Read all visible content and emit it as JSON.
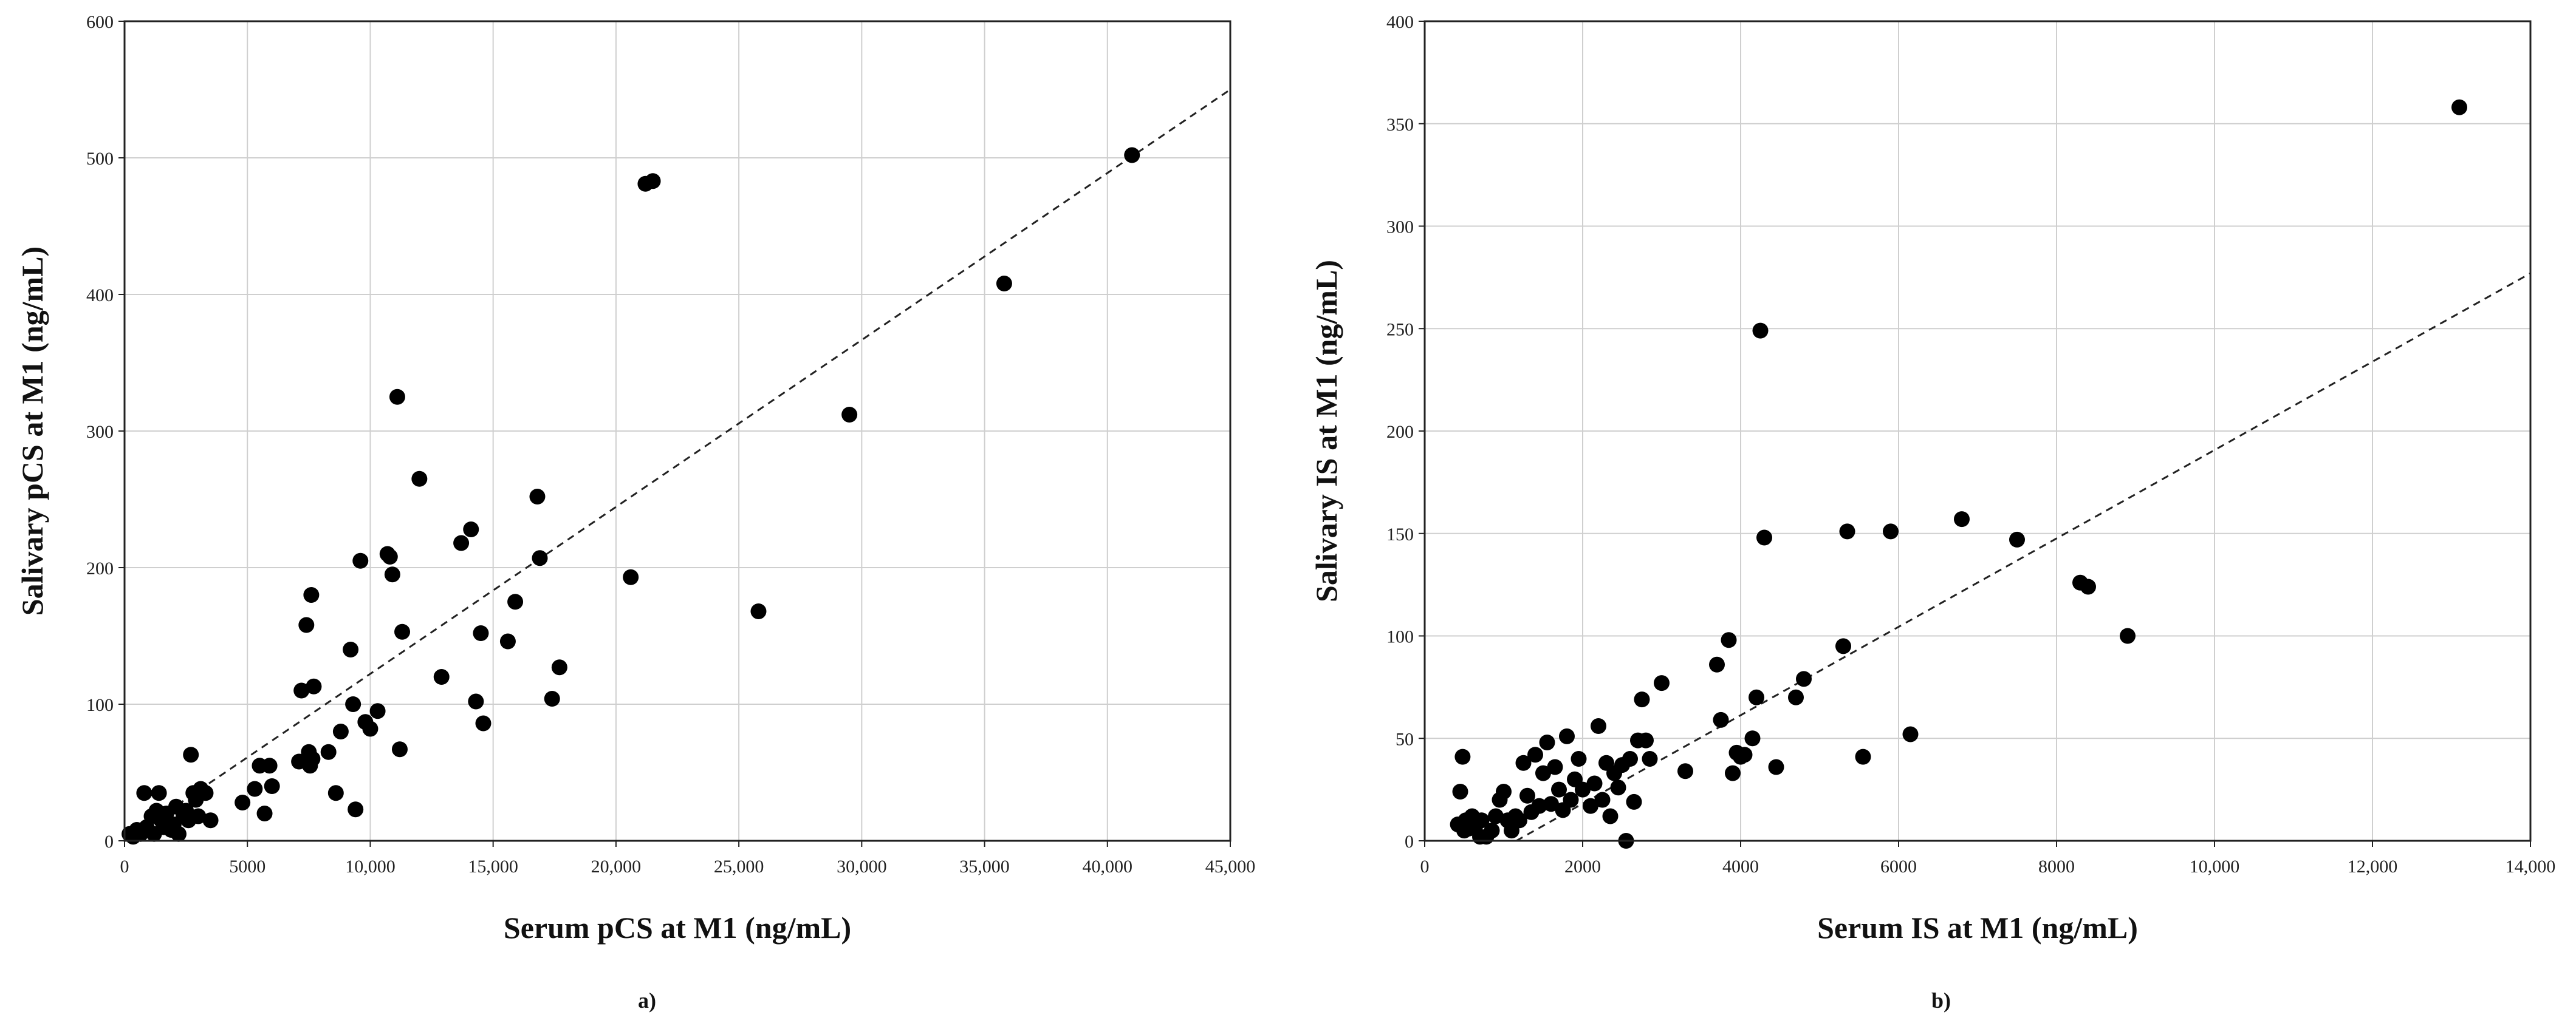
{
  "chart_data": [
    {
      "type": "scatter",
      "xlabel": "Serum pCS at M1 (ng/mL)",
      "ylabel": "Salivary pCS at M1 (ng/mL)",
      "panel_label": "a)",
      "xlim": [
        0,
        45000
      ],
      "ylim": [
        0,
        600
      ],
      "xticks": [
        0,
        5000,
        10000,
        15000,
        20000,
        25000,
        30000,
        35000,
        40000,
        45000
      ],
      "xtick_labels": [
        "0",
        "5000",
        "10,000",
        "15,000",
        "20,000",
        "25,000",
        "30,000",
        "35,000",
        "40,000",
        "45,000"
      ],
      "yticks": [
        0,
        100,
        200,
        300,
        400,
        500,
        600
      ],
      "ytick_labels": [
        "0",
        "100",
        "200",
        "300",
        "400",
        "500",
        "600"
      ],
      "grid": true,
      "trendline": {
        "style": "dashed",
        "x": [
          0,
          45000
        ],
        "y": [
          0,
          550
        ]
      },
      "points": [
        [
          200,
          5
        ],
        [
          350,
          3
        ],
        [
          500,
          8
        ],
        [
          650,
          5
        ],
        [
          800,
          35
        ],
        [
          900,
          10
        ],
        [
          1100,
          18
        ],
        [
          1200,
          5
        ],
        [
          1300,
          22
        ],
        [
          1400,
          35
        ],
        [
          1500,
          15
        ],
        [
          1600,
          10
        ],
        [
          1700,
          20
        ],
        [
          1900,
          8
        ],
        [
          2000,
          12
        ],
        [
          2100,
          25
        ],
        [
          2200,
          5
        ],
        [
          2400,
          18
        ],
        [
          2500,
          22
        ],
        [
          2600,
          15
        ],
        [
          2700,
          63
        ],
        [
          2800,
          35
        ],
        [
          2900,
          30
        ],
        [
          3000,
          18
        ],
        [
          3100,
          38
        ],
        [
          3300,
          35
        ],
        [
          3500,
          15
        ],
        [
          4800,
          28
        ],
        [
          5300,
          38
        ],
        [
          5500,
          55
        ],
        [
          5700,
          20
        ],
        [
          5900,
          55
        ],
        [
          6000,
          40
        ],
        [
          7100,
          58
        ],
        [
          7200,
          110
        ],
        [
          7400,
          158
        ],
        [
          7500,
          65
        ],
        [
          7550,
          55
        ],
        [
          7600,
          180
        ],
        [
          7650,
          60
        ],
        [
          7700,
          113
        ],
        [
          8300,
          65
        ],
        [
          8600,
          35
        ],
        [
          8800,
          80
        ],
        [
          9200,
          140
        ],
        [
          9300,
          100
        ],
        [
          9400,
          23
        ],
        [
          9600,
          205
        ],
        [
          9800,
          87
        ],
        [
          10000,
          82
        ],
        [
          10300,
          95
        ],
        [
          10700,
          210
        ],
        [
          10800,
          208
        ],
        [
          10900,
          195
        ],
        [
          11100,
          325
        ],
        [
          11200,
          67
        ],
        [
          11300,
          153
        ],
        [
          12000,
          265
        ],
        [
          12900,
          120
        ],
        [
          13700,
          218
        ],
        [
          14100,
          228
        ],
        [
          14300,
          102
        ],
        [
          14500,
          152
        ],
        [
          14600,
          86
        ],
        [
          15600,
          146
        ],
        [
          15900,
          175
        ],
        [
          16800,
          252
        ],
        [
          16900,
          207
        ],
        [
          17400,
          104
        ],
        [
          17700,
          127
        ],
        [
          20600,
          193
        ],
        [
          21200,
          481
        ],
        [
          21500,
          483
        ],
        [
          25800,
          168
        ],
        [
          29500,
          312
        ],
        [
          35800,
          408
        ],
        [
          41000,
          502
        ]
      ]
    },
    {
      "type": "scatter",
      "xlabel": "Serum IS at M1 (ng/mL)",
      "ylabel": "Salivary IS at M1 (ng/mL)",
      "panel_label": "b)",
      "xlim": [
        0,
        14000
      ],
      "ylim": [
        0,
        400
      ],
      "xticks": [
        0,
        2000,
        4000,
        6000,
        8000,
        10000,
        12000,
        14000
      ],
      "xtick_labels": [
        "0",
        "2000",
        "4000",
        "6000",
        "8000",
        "10,000",
        "12,000",
        "14,000"
      ],
      "yticks": [
        0,
        50,
        100,
        150,
        200,
        250,
        300,
        350,
        400
      ],
      "ytick_labels": [
        "0",
        "50",
        "100",
        "150",
        "200",
        "250",
        "300",
        "350",
        "400"
      ],
      "grid": true,
      "trendline": {
        "style": "dashed",
        "x": [
          0,
          14000
        ],
        "y": [
          -25,
          277
        ]
      },
      "points": [
        [
          420,
          8
        ],
        [
          450,
          24
        ],
        [
          480,
          41
        ],
        [
          500,
          5
        ],
        [
          520,
          10
        ],
        [
          560,
          6
        ],
        [
          600,
          12
        ],
        [
          650,
          8
        ],
        [
          700,
          2
        ],
        [
          720,
          10
        ],
        [
          780,
          2
        ],
        [
          850,
          5
        ],
        [
          900,
          12
        ],
        [
          950,
          20
        ],
        [
          1000,
          24
        ],
        [
          1050,
          10
        ],
        [
          1100,
          5
        ],
        [
          1150,
          12
        ],
        [
          1200,
          10
        ],
        [
          1250,
          38
        ],
        [
          1300,
          22
        ],
        [
          1350,
          14
        ],
        [
          1400,
          42
        ],
        [
          1450,
          17
        ],
        [
          1500,
          33
        ],
        [
          1550,
          48
        ],
        [
          1600,
          18
        ],
        [
          1650,
          36
        ],
        [
          1700,
          25
        ],
        [
          1750,
          15
        ],
        [
          1800,
          51
        ],
        [
          1850,
          20
        ],
        [
          1900,
          30
        ],
        [
          1950,
          40
        ],
        [
          2000,
          25
        ],
        [
          2100,
          17
        ],
        [
          2150,
          28
        ],
        [
          2200,
          56
        ],
        [
          2250,
          20
        ],
        [
          2300,
          38
        ],
        [
          2350,
          12
        ],
        [
          2400,
          33
        ],
        [
          2450,
          26
        ],
        [
          2500,
          37
        ],
        [
          2550,
          0
        ],
        [
          2600,
          40
        ],
        [
          2650,
          19
        ],
        [
          2700,
          49
        ],
        [
          2750,
          69
        ],
        [
          2800,
          49
        ],
        [
          2850,
          40
        ],
        [
          3000,
          77
        ],
        [
          3300,
          34
        ],
        [
          3700,
          86
        ],
        [
          3750,
          59
        ],
        [
          3850,
          98
        ],
        [
          3900,
          33
        ],
        [
          3950,
          43
        ],
        [
          4000,
          41
        ],
        [
          4050,
          42
        ],
        [
          4150,
          50
        ],
        [
          4200,
          70
        ],
        [
          4250,
          249
        ],
        [
          4300,
          148
        ],
        [
          4450,
          36
        ],
        [
          4700,
          70
        ],
        [
          4800,
          79
        ],
        [
          5300,
          95
        ],
        [
          5350,
          151
        ],
        [
          5550,
          41
        ],
        [
          5900,
          151
        ],
        [
          6150,
          52
        ],
        [
          6800,
          157
        ],
        [
          7500,
          147
        ],
        [
          8300,
          126
        ],
        [
          8400,
          124
        ],
        [
          8900,
          100
        ],
        [
          13100,
          358
        ]
      ]
    }
  ]
}
